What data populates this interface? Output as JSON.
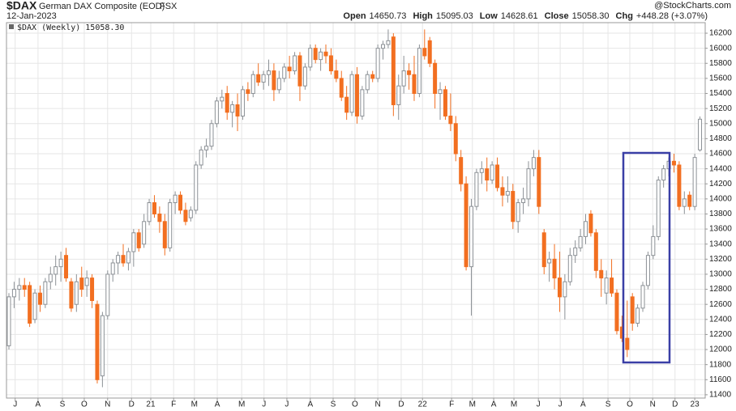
{
  "chart_data": {
    "type": "candlestick",
    "title": "$DAX",
    "subtitle": "German DAX Composite (EOD)",
    "exchange": "FSX",
    "date": "12-Jan-2023",
    "quote": [
      {
        "label": "Open",
        "value": "14650.73"
      },
      {
        "label": "High",
        "value": "15095.03"
      },
      {
        "label": "Low",
        "value": "14628.61"
      },
      {
        "label": "Close",
        "value": "15058.30"
      },
      {
        "label": "Chg",
        "value": "+448.28 (+3.07%)"
      }
    ],
    "watermark": "@StockCharts.com",
    "legend": "$DAX (Weekly) 15058.30",
    "up_color": "#8c9196",
    "down_color": "#f26f21",
    "grid": true,
    "ylim": [
      11356,
      16340
    ],
    "yticks": [
      11400,
      11600,
      11800,
      12000,
      12200,
      12400,
      12600,
      12800,
      13000,
      13200,
      13400,
      13600,
      13800,
      14000,
      14200,
      14400,
      14600,
      14800,
      15000,
      15200,
      15400,
      15600,
      15800,
      16000,
      16200
    ],
    "xticks": [
      {
        "value": 1.2,
        "label": "J"
      },
      {
        "value": 5.6,
        "label": "A"
      },
      {
        "value": 10.3,
        "label": "S"
      },
      {
        "value": 14.5,
        "label": "O"
      },
      {
        "value": 19,
        "label": "N"
      },
      {
        "value": 23.6,
        "label": "D"
      },
      {
        "value": 27.3,
        "label": "21"
      },
      {
        "value": 31.7,
        "label": "F"
      },
      {
        "value": 35.7,
        "label": "M"
      },
      {
        "value": 40.1,
        "label": "A"
      },
      {
        "value": 44.8,
        "label": "M"
      },
      {
        "value": 49.1,
        "label": "J"
      },
      {
        "value": 53.5,
        "label": "J"
      },
      {
        "value": 58,
        "label": "A"
      },
      {
        "value": 62.4,
        "label": "S"
      },
      {
        "value": 66.6,
        "label": "O"
      },
      {
        "value": 71,
        "label": "N"
      },
      {
        "value": 75.5,
        "label": "D"
      },
      {
        "value": 79.6,
        "label": "22"
      },
      {
        "value": 85.2,
        "label": "F"
      },
      {
        "value": 89.2,
        "label": "M"
      },
      {
        "value": 93.3,
        "label": "A"
      },
      {
        "value": 97.2,
        "label": "M"
      },
      {
        "value": 101.9,
        "label": "J"
      },
      {
        "value": 106.1,
        "label": "J"
      },
      {
        "value": 110.5,
        "label": "A"
      },
      {
        "value": 115.3,
        "label": "S"
      },
      {
        "value": 119.5,
        "label": "O"
      },
      {
        "value": 123.9,
        "label": "N"
      },
      {
        "value": 128.2,
        "label": "D"
      },
      {
        "value": 132,
        "label": "23"
      }
    ],
    "open": [
      12050,
      12700,
      12800,
      12850,
      12850,
      12400,
      12750,
      12600,
      12900,
      13000,
      13100,
      13250,
      12900,
      12600,
      12950,
      12850,
      12950,
      12600,
      11650,
      12450,
      13000,
      13150,
      13250,
      13150,
      13300,
      13550,
      13400,
      13700,
      13950,
      13800,
      13700,
      13350,
      13950,
      14050,
      13850,
      13750,
      13850,
      14450,
      14650,
      14700,
      15000,
      15300,
      15400,
      15150,
      15250,
      15100,
      15450,
      15400,
      15650,
      15550,
      15650,
      15700,
      15450,
      15600,
      15750,
      15700,
      15900,
      15500,
      15750,
      16000,
      15850,
      15950,
      15900,
      15700,
      15600,
      15350,
      15150,
      15650,
      15100,
      15450,
      15650,
      15600,
      16000,
      16050,
      16150,
      15250,
      15500,
      15700,
      15650,
      15400,
      16000,
      16100,
      15800,
      15400,
      15450,
      15100,
      15000,
      14550,
      14200,
      13100,
      13900,
      14350,
      14400,
      14250,
      14450,
      14150,
      14050,
      14100,
      13700,
      13950,
      14000,
      14400,
      14550,
      13550,
      13150,
      13200,
      12950,
      12700,
      12900,
      13250,
      13350,
      13500,
      13800,
      13550,
      13050,
      12750,
      12950,
      12750,
      12300,
      12150,
      12700,
      12350,
      12550,
      12850,
      13250,
      13500,
      14250,
      14400,
      14500,
      14450,
      13900,
      14050,
      13900,
      14650.73
    ],
    "high": [
      12750,
      12900,
      12950,
      12950,
      12900,
      12800,
      12850,
      12950,
      13100,
      13250,
      13300,
      13350,
      12950,
      13000,
      13100,
      13050,
      13000,
      12650,
      12500,
      13050,
      13200,
      13300,
      13400,
      13350,
      13600,
      13600,
      13800,
      14000,
      14050,
      13900,
      13800,
      14000,
      14100,
      14100,
      13950,
      13900,
      14500,
      14700,
      14800,
      15050,
      15350,
      15450,
      15500,
      15300,
      15400,
      15500,
      15550,
      15700,
      15800,
      15700,
      15850,
      15800,
      15700,
      15800,
      15900,
      15950,
      15950,
      15800,
      16050,
      16050,
      16000,
      16050,
      16000,
      15850,
      15700,
      15500,
      15700,
      15750,
      15500,
      15700,
      15700,
      16050,
      16100,
      16250,
      16200,
      15650,
      15900,
      15800,
      15900,
      16050,
      16250,
      16150,
      15850,
      15550,
      15500,
      15400,
      15100,
      14650,
      14300,
      14000,
      14400,
      14500,
      14550,
      14500,
      14550,
      14300,
      14300,
      14200,
      14000,
      14150,
      14500,
      14650,
      14650,
      13600,
      13300,
      13400,
      13300,
      13000,
      13350,
      13450,
      13600,
      13800,
      13850,
      13600,
      13200,
      13050,
      13200,
      12800,
      12450,
      12650,
      12750,
      12600,
      12900,
      13300,
      13650,
      14300,
      14450,
      14550,
      14600,
      14500,
      14100,
      14100,
      14600,
      15095.03
    ],
    "low": [
      12000,
      12550,
      12650,
      12700,
      12300,
      12350,
      12500,
      12550,
      12800,
      12850,
      12900,
      12900,
      12500,
      12500,
      12700,
      12700,
      12550,
      11550,
      11500,
      12400,
      12900,
      13000,
      13100,
      13050,
      13100,
      13300,
      13350,
      13650,
      13750,
      13550,
      13250,
      13300,
      13800,
      13800,
      13650,
      13700,
      13800,
      14400,
      14550,
      14650,
      14950,
      15200,
      15050,
      14950,
      14900,
      15050,
      15300,
      15350,
      15500,
      15450,
      15500,
      15300,
      15400,
      15550,
      15600,
      15650,
      15300,
      15450,
      15700,
      15800,
      15700,
      15800,
      15650,
      15550,
      15300,
      15050,
      15100,
      15000,
      15050,
      15400,
      15550,
      15550,
      15850,
      16000,
      15100,
      15050,
      15400,
      15450,
      15300,
      15350,
      15850,
      15750,
      15200,
      15050,
      15050,
      14900,
      14500,
      14100,
      13050,
      12450,
      13850,
      14200,
      14100,
      14200,
      14100,
      13900,
      13950,
      13600,
      13550,
      13800,
      13900,
      14300,
      13800,
      13000,
      12900,
      12800,
      12500,
      12400,
      12850,
      13150,
      13300,
      13400,
      13500,
      12950,
      12700,
      12600,
      12700,
      12200,
      12100,
      11900,
      12250,
      12300,
      12500,
      12800,
      13200,
      13450,
      14150,
      14300,
      14350,
      13850,
      13800,
      13850,
      13850,
      14628.61
    ],
    "close": [
      12700,
      12800,
      12850,
      12800,
      12350,
      12750,
      12600,
      12900,
      13000,
      13100,
      13200,
      12950,
      12550,
      12900,
      12800,
      12950,
      12650,
      11600,
      12450,
      13000,
      13150,
      13250,
      13150,
      13300,
      13550,
      13350,
      13700,
      13950,
      13800,
      13700,
      13350,
      13950,
      14050,
      13850,
      13700,
      13850,
      14450,
      14650,
      14700,
      15000,
      15300,
      15350,
      15150,
      15250,
      15100,
      15450,
      15400,
      15650,
      15550,
      15650,
      15700,
      15450,
      15600,
      15750,
      15700,
      15900,
      15500,
      15750,
      16000,
      15850,
      15950,
      15900,
      15700,
      15600,
      15350,
      15150,
      15650,
      15100,
      15450,
      15650,
      15600,
      16000,
      16050,
      16100,
      15250,
      15500,
      15700,
      15650,
      15400,
      16000,
      15900,
      15800,
      15400,
      15450,
      15100,
      15000,
      14600,
      14200,
      13100,
      13900,
      14350,
      14400,
      14250,
      14450,
      14150,
      14050,
      14100,
      13700,
      13950,
      14000,
      14400,
      14550,
      13900,
      13100,
      13200,
      12950,
      12700,
      12900,
      13250,
      13350,
      13500,
      13700,
      13550,
      13050,
      12950,
      12950,
      12750,
      12250,
      12150,
      12000,
      12350,
      12550,
      12850,
      13250,
      13500,
      14250,
      14400,
      14500,
      14450,
      13900,
      14000,
      13900,
      14550,
      15058.3
    ]
  }
}
